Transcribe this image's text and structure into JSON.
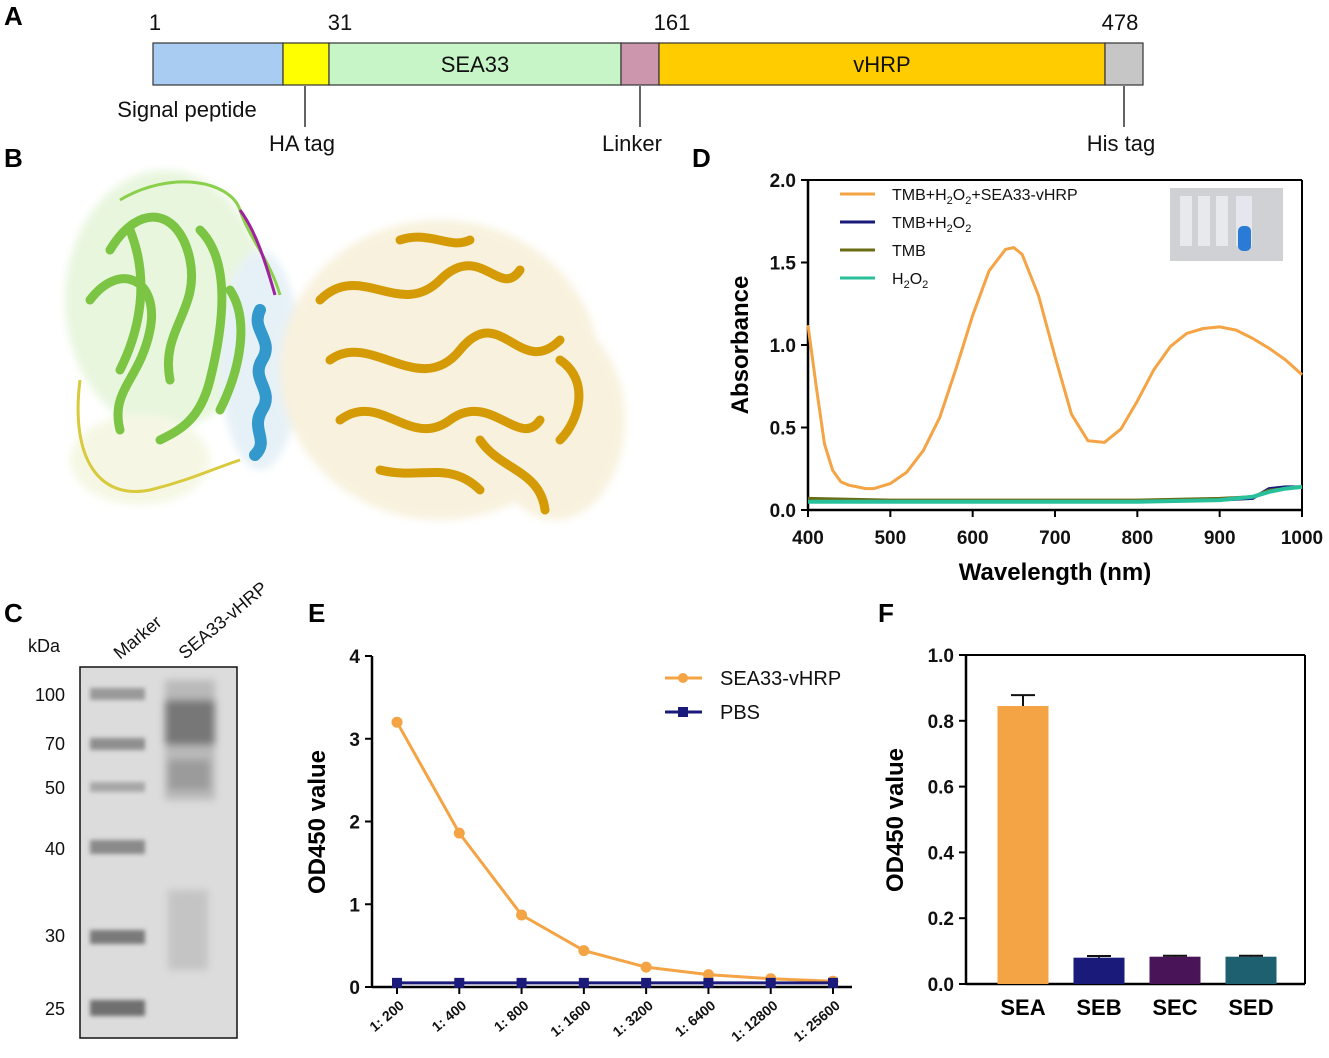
{
  "panels": {
    "a": "A",
    "b": "B",
    "c": "C",
    "d": "D",
    "e": "E",
    "f": "F"
  },
  "colors": {
    "signal": "#a9cdf2",
    "ha": "#ffff00",
    "sea33": "#c7f5c7",
    "linker": "#cc96ac",
    "vhrp": "#ffcc00",
    "his": "#c6c6c6",
    "orange": "#f4a444",
    "navy": "#1a1a7a",
    "olive": "#6b6b15",
    "teal": "#28c09a",
    "sec": "#4a1458",
    "sed": "#1f6070"
  },
  "construct": {
    "positions": [
      "1",
      "31",
      "161",
      "478"
    ],
    "segments": [
      {
        "name": "Signal peptide",
        "label": ""
      },
      {
        "name": "HA tag",
        "label": ""
      },
      {
        "name": "SEA33",
        "label": "SEA33"
      },
      {
        "name": "Linker",
        "label": ""
      },
      {
        "name": "vHRP",
        "label": "vHRP"
      },
      {
        "name": "His tag",
        "label": ""
      }
    ],
    "callouts": {
      "signal": "Signal peptide",
      "ha": "HA tag",
      "linker": "Linker",
      "his": "His tag"
    }
  },
  "gel": {
    "kda_label": "kDa",
    "lanes": [
      "Marker",
      "SEA33-vHRP"
    ],
    "markers": [
      "100",
      "70",
      "50",
      "40",
      "30",
      "25"
    ]
  },
  "chart_data": [
    {
      "id": "D",
      "type": "line",
      "xlabel": "Wavelength (nm)",
      "ylabel": "Absorbance",
      "xlim": [
        400,
        1000
      ],
      "ylim": [
        0,
        2.0
      ],
      "xticks": [
        "400",
        "500",
        "600",
        "700",
        "800",
        "900",
        "1000"
      ],
      "yticks": [
        "0.0",
        "0.5",
        "1.0",
        "1.5",
        "2.0"
      ],
      "legend": [
        "TMB+H2O2+SEA33-vHRP",
        "TMB+H2O2",
        "TMB",
        "H2O2"
      ],
      "series": [
        {
          "name": "TMB+H2O2+SEA33-vHRP",
          "x": [
            400,
            410,
            420,
            430,
            440,
            450,
            460,
            470,
            480,
            500,
            520,
            540,
            560,
            580,
            600,
            620,
            640,
            650,
            660,
            680,
            700,
            720,
            740,
            760,
            780,
            800,
            820,
            840,
            860,
            880,
            900,
            920,
            940,
            960,
            980,
            1000
          ],
          "y": [
            1.12,
            0.75,
            0.4,
            0.24,
            0.17,
            0.15,
            0.14,
            0.13,
            0.13,
            0.16,
            0.23,
            0.36,
            0.56,
            0.86,
            1.18,
            1.45,
            1.58,
            1.59,
            1.55,
            1.3,
            0.93,
            0.58,
            0.42,
            0.41,
            0.49,
            0.66,
            0.85,
            0.99,
            1.07,
            1.1,
            1.11,
            1.09,
            1.04,
            0.98,
            0.91,
            0.82
          ]
        },
        {
          "name": "TMB+H2O2",
          "x": [
            400,
            500,
            600,
            700,
            800,
            900,
            940,
            960,
            980,
            1000
          ],
          "y": [
            0.06,
            0.05,
            0.05,
            0.05,
            0.05,
            0.06,
            0.07,
            0.13,
            0.14,
            0.14
          ]
        },
        {
          "name": "TMB",
          "x": [
            400,
            500,
            600,
            700,
            800,
            900,
            940,
            960,
            980,
            1000
          ],
          "y": [
            0.07,
            0.06,
            0.06,
            0.06,
            0.06,
            0.07,
            0.08,
            0.12,
            0.13,
            0.14
          ]
        },
        {
          "name": "H2O2",
          "x": [
            400,
            500,
            600,
            700,
            800,
            900,
            940,
            960,
            980,
            1000
          ],
          "y": [
            0.05,
            0.05,
            0.05,
            0.05,
            0.05,
            0.06,
            0.08,
            0.11,
            0.13,
            0.14
          ]
        }
      ]
    },
    {
      "id": "E",
      "type": "line",
      "xlabel": "",
      "ylabel": "OD450 value",
      "ylim": [
        0,
        4
      ],
      "yticks": [
        "0",
        "1",
        "2",
        "3",
        "4"
      ],
      "categories": [
        "1: 200",
        "1: 400",
        "1: 800",
        "1: 1600",
        "1: 3200",
        "1: 6400",
        "1: 12800",
        "1: 25600"
      ],
      "series": [
        {
          "name": "SEA33-vHRP",
          "values": [
            3.2,
            1.86,
            0.87,
            0.44,
            0.24,
            0.15,
            0.1,
            0.07
          ]
        },
        {
          "name": "PBS",
          "values": [
            0.05,
            0.05,
            0.05,
            0.05,
            0.05,
            0.05,
            0.05,
            0.05
          ]
        }
      ]
    },
    {
      "id": "F",
      "type": "bar",
      "xlabel": "",
      "ylabel": "OD450 value",
      "ylim": [
        0,
        1.0
      ],
      "yticks": [
        "0.0",
        "0.2",
        "0.4",
        "0.6",
        "0.8",
        "1.0"
      ],
      "categories": [
        "SEA",
        "SEB",
        "SEC",
        "SED"
      ],
      "values": [
        0.845,
        0.08,
        0.083,
        0.083
      ],
      "errors": [
        0.033,
        0.005,
        0.003,
        0.003
      ]
    }
  ]
}
